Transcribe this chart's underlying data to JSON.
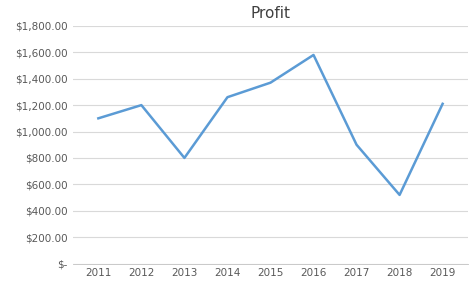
{
  "title": "Profit",
  "years": [
    2011,
    2012,
    2013,
    2014,
    2015,
    2016,
    2017,
    2018,
    2019
  ],
  "values": [
    1100,
    1200,
    800,
    1260,
    1370,
    1580,
    900,
    520,
    1210
  ],
  "line_color": "#5B9BD5",
  "background_color": "#ffffff",
  "plot_bg_color": "#ffffff",
  "ylim": [
    0,
    1800
  ],
  "yticks": [
    0,
    200,
    400,
    600,
    800,
    1000,
    1200,
    1400,
    1600,
    1800
  ],
  "title_fontsize": 11,
  "tick_fontsize": 7.5,
  "grid_color": "#d9d9d9",
  "spine_color": "#c0c0c0",
  "figsize": [
    4.74,
    2.84
  ],
  "dpi": 100
}
